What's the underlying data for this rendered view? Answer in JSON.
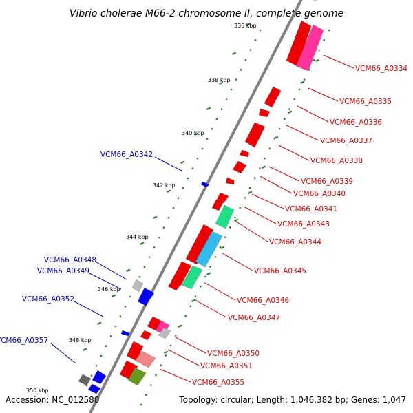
{
  "title": "Vibrio cholerae M66-2 chromosome II, complete genome",
  "footer": {
    "accession": "Accession: NC_012580",
    "topology": "Topology: circular; Length: 1,046,382 bp; Genes: 1,047"
  },
  "colors": {
    "forward_label": "#dd0000",
    "reverse_label": "#0000cc",
    "backbone": "#808080",
    "tick": "#2e7d32",
    "red_gene": "#ee0000",
    "pink_gene": "#ff3399",
    "cyan_gene": "#33bbee",
    "green_gene": "#22dd88",
    "blue_gene": "#0000ee",
    "grey_gene": "#bbbbbb",
    "olive_gene": "#669922"
  },
  "ruler": [
    "336 kbp",
    "338 kbp",
    "340 kbp",
    "342 kbp",
    "344 kbp",
    "346 kbp",
    "348 kbp",
    "350 kbp"
  ],
  "forward_labels": [
    "VCM66_A0334",
    "VCM66_A0335",
    "VCM66_A0336",
    "VCM66_A0337",
    "VCM66_A0338",
    "VCM66_A0339",
    "VCM66_A0340",
    "VCM66_A0341",
    "VCM66_A0343",
    "VCM66_A0344",
    "VCM66_A0345",
    "VCM66_A0346",
    "VCM66_A0347",
    "VCM66_A0350",
    "VCM66_A0351",
    "VCM66_A0355"
  ],
  "reverse_labels": [
    "VCM66_A0342",
    "VCM66_A0348",
    "VCM66_A0349",
    "VCM66_A0352",
    "VCM66_A0357"
  ]
}
